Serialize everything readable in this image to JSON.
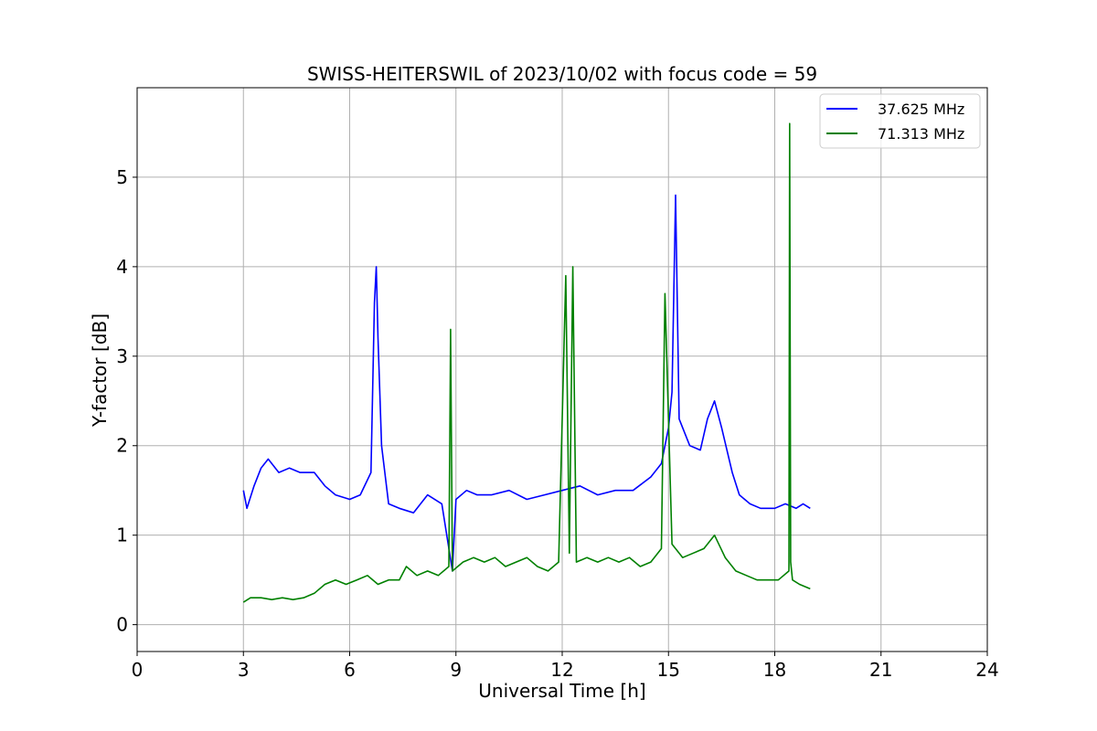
{
  "chart_data": {
    "type": "line",
    "title": "SWISS-HEITERSWIL of 2023/10/02 with focus code = 59",
    "xlabel": "Universal Time [h]",
    "ylabel": "Y-factor [dB]",
    "xlim": [
      0,
      24
    ],
    "ylim": [
      -0.3,
      6.0
    ],
    "xticks": [
      0,
      3,
      6,
      9,
      12,
      15,
      18,
      21,
      24
    ],
    "yticks": [
      0,
      1,
      2,
      3,
      4,
      5
    ],
    "grid": true,
    "legend_position": "top-right",
    "series": [
      {
        "name": "37.625 MHz",
        "color": "#0000ff",
        "x": [
          3.0,
          3.1,
          3.3,
          3.5,
          3.7,
          4.0,
          4.3,
          4.6,
          5.0,
          5.3,
          5.6,
          6.0,
          6.3,
          6.6,
          6.7,
          6.75,
          6.8,
          6.9,
          7.1,
          7.4,
          7.8,
          8.2,
          8.6,
          8.9,
          9.0,
          9.3,
          9.6,
          10.0,
          10.5,
          11.0,
          11.5,
          12.0,
          12.5,
          13.0,
          13.5,
          14.0,
          14.5,
          14.8,
          15.0,
          15.1,
          15.2,
          15.3,
          15.6,
          15.9,
          16.1,
          16.3,
          16.5,
          16.8,
          17.0,
          17.3,
          17.6,
          18.0,
          18.3,
          18.6,
          18.8,
          19.0
        ],
        "y": [
          1.5,
          1.3,
          1.55,
          1.75,
          1.85,
          1.7,
          1.75,
          1.7,
          1.7,
          1.55,
          1.45,
          1.4,
          1.45,
          1.7,
          3.6,
          4.0,
          3.2,
          2.0,
          1.35,
          1.3,
          1.25,
          1.45,
          1.35,
          0.6,
          1.4,
          1.5,
          1.45,
          1.45,
          1.5,
          1.4,
          1.45,
          1.5,
          1.55,
          1.45,
          1.5,
          1.5,
          1.65,
          1.8,
          2.2,
          2.6,
          4.8,
          2.3,
          2.0,
          1.95,
          2.3,
          2.5,
          2.2,
          1.7,
          1.45,
          1.35,
          1.3,
          1.3,
          1.35,
          1.3,
          1.35,
          1.3
        ]
      },
      {
        "name": "71.313 MHz",
        "color": "#008000",
        "x": [
          3.0,
          3.2,
          3.5,
          3.8,
          4.1,
          4.4,
          4.7,
          5.0,
          5.3,
          5.6,
          5.9,
          6.2,
          6.5,
          6.8,
          7.1,
          7.4,
          7.6,
          7.9,
          8.2,
          8.5,
          8.8,
          8.85,
          8.9,
          9.2,
          9.5,
          9.8,
          10.1,
          10.4,
          10.7,
          11.0,
          11.3,
          11.6,
          11.9,
          12.1,
          12.2,
          12.3,
          12.4,
          12.7,
          13.0,
          13.3,
          13.6,
          13.9,
          14.2,
          14.5,
          14.8,
          14.9,
          15.1,
          15.4,
          15.7,
          16.0,
          16.3,
          16.6,
          16.9,
          17.2,
          17.5,
          17.8,
          18.1,
          18.4,
          18.42,
          18.45,
          18.5,
          18.7,
          19.0
        ],
        "y": [
          0.25,
          0.3,
          0.3,
          0.28,
          0.3,
          0.28,
          0.3,
          0.35,
          0.45,
          0.5,
          0.45,
          0.5,
          0.55,
          0.45,
          0.5,
          0.5,
          0.65,
          0.55,
          0.6,
          0.55,
          0.65,
          3.3,
          0.6,
          0.7,
          0.75,
          0.7,
          0.75,
          0.65,
          0.7,
          0.75,
          0.65,
          0.6,
          0.7,
          3.9,
          0.8,
          4.0,
          0.7,
          0.75,
          0.7,
          0.75,
          0.7,
          0.75,
          0.65,
          0.7,
          0.85,
          3.7,
          0.9,
          0.75,
          0.8,
          0.85,
          1.0,
          0.75,
          0.6,
          0.55,
          0.5,
          0.5,
          0.5,
          0.6,
          5.6,
          0.7,
          0.5,
          0.45,
          0.4
        ]
      }
    ]
  }
}
